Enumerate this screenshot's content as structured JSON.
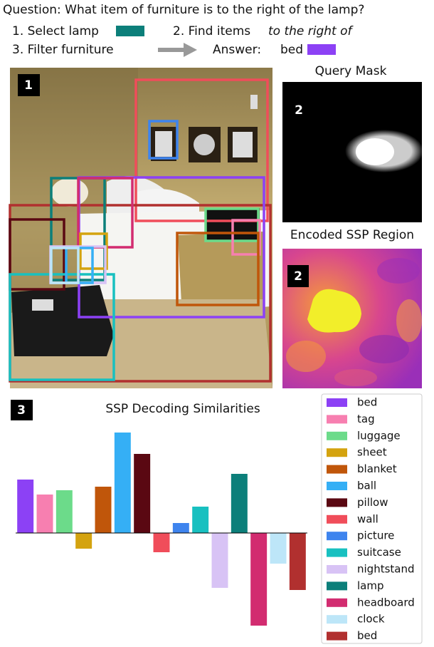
{
  "header": {
    "question": "Question: What item of furniture is to the right of the lamp?",
    "step1": "1. Select lamp",
    "step2": "2. Find items",
    "step2_relation": "to the right of",
    "step3": "3. Filter furniture",
    "answer_label": "Answer:",
    "answer": "bed"
  },
  "photo": {
    "badge": "1"
  },
  "query_mask": {
    "title": "Query Mask",
    "badge": "2"
  },
  "ssp_region": {
    "title": "Encoded SSP Region",
    "badge": "2"
  },
  "chart_badge": "3",
  "chart_data": {
    "type": "bar",
    "title": "SSP Decoding Similarities",
    "categories": [
      "bed",
      "tag",
      "luggage",
      "sheet",
      "blanket",
      "ball",
      "pillow",
      "wall",
      "picture",
      "suitcase",
      "nightstand",
      "lamp",
      "headboard",
      "clock",
      "bed"
    ],
    "values": [
      0.75,
      0.54,
      0.6,
      -0.22,
      0.65,
      1.41,
      1.11,
      -0.27,
      0.14,
      0.37,
      -0.77,
      0.83,
      -1.3,
      -0.43,
      -0.8
    ],
    "colors": [
      "#8c41f5",
      "#f77fb0",
      "#6cdb8a",
      "#d4a30f",
      "#c0560a",
      "#35aff5",
      "#5a0812",
      "#f04d5a",
      "#3e84ee",
      "#18c0c0",
      "#d8c3f5",
      "#0c7f7a",
      "#d22c70",
      "#bde6f8",
      "#b1302f"
    ],
    "ylim": [
      -1.32,
      1.48
    ],
    "legend": "right"
  }
}
